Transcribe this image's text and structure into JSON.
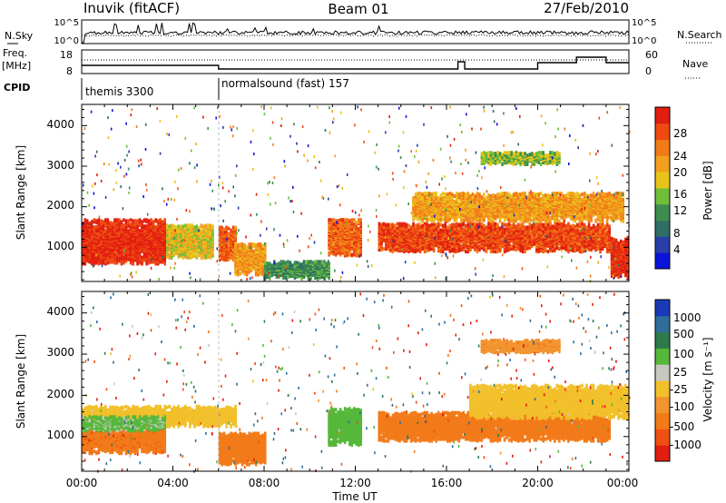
{
  "header": {
    "station": "Inuvik (fitACF)",
    "beam": "Beam 01",
    "date": "27/Feb/2010"
  },
  "top_panels": {
    "nsky_label": "N.Sky",
    "nsky_ticks": [
      "10^5",
      "10^0"
    ],
    "nsearch_label": "N.Search",
    "nsearch_ticks": [
      "10^5",
      "10^0"
    ],
    "freq_label_1": "Freq.",
    "freq_label_2": "[MHz]",
    "freq_ticks": [
      "18",
      "8"
    ],
    "nave_label": "Nave",
    "nave_ticks": [
      "60",
      "0"
    ],
    "cpid_label": "CPID",
    "cpid_segments": [
      {
        "label": "themis 3300",
        "start_hour": 0,
        "end_hour": 6
      },
      {
        "label": "normalsound (fast) 157",
        "start_hour": 6,
        "end_hour": 24
      }
    ]
  },
  "time_axis": {
    "label": "Time UT",
    "ticks": [
      "00:00",
      "04:00",
      "08:00",
      "12:00",
      "16:00",
      "20:00",
      "00:00"
    ]
  },
  "range_axis": {
    "label": "Slant Range [km]",
    "ticks": [
      "1000",
      "2000",
      "3000",
      "4000"
    ]
  },
  "power_scale": {
    "label": "Power [dB]",
    "ticks": [
      "4",
      "8",
      "12",
      "16",
      "20",
      "24",
      "28"
    ],
    "colors": [
      "#0a14d8",
      "#2a3ea8",
      "#2f6e64",
      "#3d8e4e",
      "#6fbe3a",
      "#e8c41a",
      "#f2a020",
      "#f27a18",
      "#ee4a12",
      "#e21e10"
    ]
  },
  "velocity_scale": {
    "label": "Velocity [m s⁻¹]",
    "ticks": [
      "1000",
      "500",
      "100",
      "25",
      "-25",
      "-100",
      "-500",
      "-1000"
    ],
    "colors": [
      "#1a3ab8",
      "#2f6e9c",
      "#2f7a4c",
      "#55b83a",
      "#c8c8c0",
      "#f2c02a",
      "#f29430",
      "#f27a18",
      "#ee5014",
      "#e21e10"
    ]
  },
  "chart_data": [
    {
      "type": "heatmap",
      "title": "Power",
      "xlabel": "Time UT",
      "ylabel": "Slant Range [km]",
      "xlim": [
        0,
        24
      ],
      "ylim": [
        180,
        4500
      ],
      "zlabel": "Power [dB]",
      "zlim": [
        0,
        30
      ],
      "features": [
        {
          "t": [
            0,
            3.7
          ],
          "r": [
            550,
            1650
          ],
          "z": 28
        },
        {
          "t": [
            3.7,
            5.7
          ],
          "r": [
            700,
            1500
          ],
          "z": 17
        },
        {
          "t": [
            6.0,
            6.7
          ],
          "r": [
            650,
            1450
          ],
          "z": 24
        },
        {
          "t": [
            6.7,
            8.0
          ],
          "r": [
            280,
            1050
          ],
          "z": 20
        },
        {
          "t": [
            8.0,
            10.8
          ],
          "r": [
            180,
            600
          ],
          "z": 10
        },
        {
          "t": [
            10.8,
            12.2
          ],
          "r": [
            750,
            1650
          ],
          "z": 24
        },
        {
          "t": [
            13.0,
            23.2
          ],
          "r": [
            850,
            1550
          ],
          "z": 26
        },
        {
          "t": [
            14.5,
            23.8
          ],
          "r": [
            1600,
            2300
          ],
          "z": 20
        },
        {
          "t": [
            17.5,
            21.0
          ],
          "r": [
            3000,
            3300
          ],
          "z": 14
        },
        {
          "t": [
            23.2,
            24.0
          ],
          "r": [
            200,
            1200
          ],
          "z": 28
        }
      ]
    },
    {
      "type": "heatmap",
      "title": "Velocity",
      "xlabel": "Time UT",
      "ylabel": "Slant Range [km]",
      "xlim": [
        0,
        24
      ],
      "ylim": [
        180,
        4500
      ],
      "zlabel": "Velocity [m s⁻¹]",
      "zlim": [
        -1000,
        1000
      ],
      "features": [
        {
          "t": [
            0,
            6.7
          ],
          "r": [
            1200,
            1700
          ],
          "z": 10
        },
        {
          "t": [
            0,
            3.7
          ],
          "r": [
            550,
            1200
          ],
          "z": -200
        },
        {
          "t": [
            0,
            3.7
          ],
          "r": [
            1100,
            1450
          ],
          "z": 120
        },
        {
          "t": [
            6.0,
            8.0
          ],
          "r": [
            280,
            1050
          ],
          "z": -150
        },
        {
          "t": [
            10.8,
            12.2
          ],
          "r": [
            750,
            1650
          ],
          "z": 150
        },
        {
          "t": [
            13.0,
            23.2
          ],
          "r": [
            850,
            1550
          ],
          "z": -150
        },
        {
          "t": [
            17.0,
            24.0
          ],
          "r": [
            1400,
            2200
          ],
          "z": 10
        },
        {
          "t": [
            17.5,
            21.0
          ],
          "r": [
            3000,
            3300
          ],
          "z": -80
        }
      ]
    }
  ]
}
